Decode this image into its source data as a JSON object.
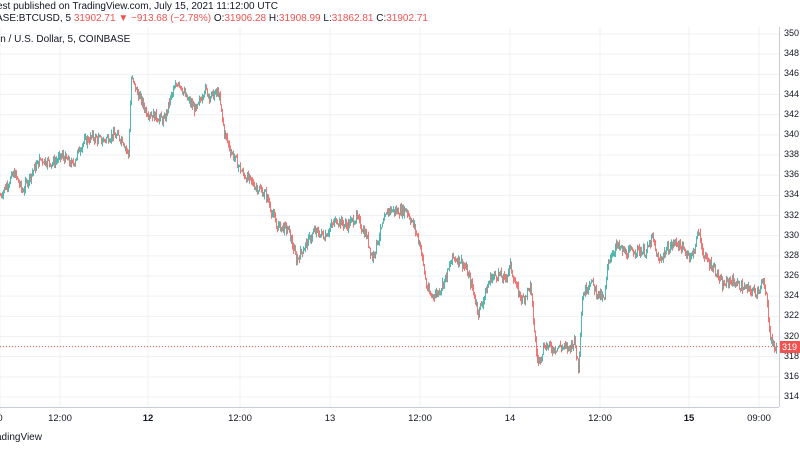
{
  "header": {
    "published_text": "est published on TradingView.com, July 15, 2021 11:12:00 UTC"
  },
  "ohlc": {
    "symbol": "ASE:BTCUSD, 5",
    "last": "31902.71",
    "change": "▼ −913.68 (−2.78%)",
    "o_label": "O:",
    "o_value": "31906.28",
    "h_label": "H:",
    "h_value": "31908.99",
    "l_label": "L:",
    "l_value": "31862.81",
    "c_label": "C:",
    "c_value": "31902.71"
  },
  "series_title": "in / U.S. Dollar, 5, COINBASE",
  "price_badge": "319",
  "footer": "adingView",
  "colors": {
    "up": "#26a69a",
    "down": "#ef5350",
    "grid": "#eef0f3"
  },
  "chart_data": {
    "type": "candlestick",
    "y_axis": {
      "tick_labels": [
        "350",
        "348",
        "346",
        "344",
        "342",
        "340",
        "338",
        "336",
        "334",
        "332",
        "330",
        "328",
        "326",
        "324",
        "322",
        "320",
        "318",
        "316",
        "314"
      ],
      "range": [
        313,
        351
      ],
      "unit_shown": "hundreds (truncated labels)"
    },
    "x_axis": {
      "tick_labels": [
        "0",
        "12:00",
        "12",
        "12:00",
        "13",
        "12:00",
        "14",
        "12:00",
        "15",
        "09:00"
      ],
      "bold": [
        false,
        false,
        true,
        false,
        false,
        false,
        false,
        false,
        true,
        false
      ]
    },
    "current_price_line": 319.0,
    "price_path": [
      [
        0,
        334.0
      ],
      [
        6,
        335.0
      ],
      [
        14,
        336.2
      ],
      [
        22,
        334.4
      ],
      [
        30,
        336.0
      ],
      [
        40,
        337.6
      ],
      [
        52,
        337.2
      ],
      [
        62,
        337.9
      ],
      [
        72,
        337.0
      ],
      [
        82,
        339.2
      ],
      [
        92,
        339.8
      ],
      [
        102,
        339.4
      ],
      [
        112,
        340.0
      ],
      [
        122,
        339.6
      ],
      [
        128,
        338.0
      ],
      [
        131,
        345.6
      ],
      [
        136,
        344.4
      ],
      [
        146,
        342.3
      ],
      [
        156,
        341.8
      ],
      [
        164,
        341.4
      ],
      [
        170,
        343.6
      ],
      [
        178,
        345.4
      ],
      [
        186,
        343.6
      ],
      [
        196,
        342.4
      ],
      [
        204,
        344.6
      ],
      [
        210,
        343.8
      ],
      [
        218,
        344.2
      ],
      [
        224,
        340.2
      ],
      [
        230,
        338.5
      ],
      [
        242,
        336.2
      ],
      [
        254,
        335.0
      ],
      [
        266,
        334.0
      ],
      [
        276,
        331.0
      ],
      [
        288,
        330.6
      ],
      [
        296,
        327.6
      ],
      [
        302,
        328.6
      ],
      [
        314,
        330.4
      ],
      [
        324,
        330.0
      ],
      [
        336,
        331.6
      ],
      [
        346,
        331.0
      ],
      [
        356,
        331.8
      ],
      [
        366,
        330.0
      ],
      [
        372,
        327.8
      ],
      [
        380,
        330.4
      ],
      [
        388,
        332.6
      ],
      [
        396,
        332.4
      ],
      [
        406,
        332.6
      ],
      [
        414,
        330.8
      ],
      [
        420,
        329.0
      ],
      [
        426,
        325.0
      ],
      [
        430,
        324.0
      ],
      [
        438,
        324.4
      ],
      [
        446,
        326.0
      ],
      [
        452,
        327.8
      ],
      [
        460,
        327.6
      ],
      [
        466,
        326.6
      ],
      [
        472,
        324.8
      ],
      [
        478,
        322.4
      ],
      [
        484,
        324.0
      ],
      [
        490,
        325.8
      ],
      [
        498,
        326.2
      ],
      [
        504,
        325.6
      ],
      [
        510,
        327.0
      ],
      [
        516,
        324.8
      ],
      [
        522,
        323.6
      ],
      [
        530,
        325.0
      ],
      [
        536,
        318.4
      ],
      [
        538,
        317.4
      ],
      [
        544,
        319.2
      ],
      [
        552,
        318.8
      ],
      [
        560,
        319.0
      ],
      [
        568,
        318.8
      ],
      [
        574,
        319.6
      ],
      [
        578,
        317.0
      ],
      [
        582,
        324.0
      ],
      [
        590,
        325.6
      ],
      [
        596,
        324.4
      ],
      [
        604,
        323.6
      ],
      [
        608,
        327.6
      ],
      [
        616,
        329.0
      ],
      [
        626,
        328.2
      ],
      [
        636,
        328.6
      ],
      [
        646,
        328.4
      ],
      [
        652,
        329.8
      ],
      [
        658,
        327.4
      ],
      [
        666,
        328.6
      ],
      [
        676,
        329.4
      ],
      [
        684,
        328.4
      ],
      [
        692,
        328.0
      ],
      [
        698,
        330.4
      ],
      [
        704,
        327.8
      ],
      [
        714,
        326.8
      ],
      [
        722,
        325.0
      ],
      [
        730,
        325.6
      ],
      [
        740,
        325.0
      ],
      [
        748,
        324.6
      ],
      [
        756,
        324.4
      ],
      [
        762,
        325.4
      ],
      [
        766,
        324.0
      ],
      [
        770,
        320.0
      ],
      [
        774,
        318.8
      ],
      [
        776,
        319.0
      ]
    ],
    "x_unit": "plot x position in px (no time resolution printed)"
  }
}
